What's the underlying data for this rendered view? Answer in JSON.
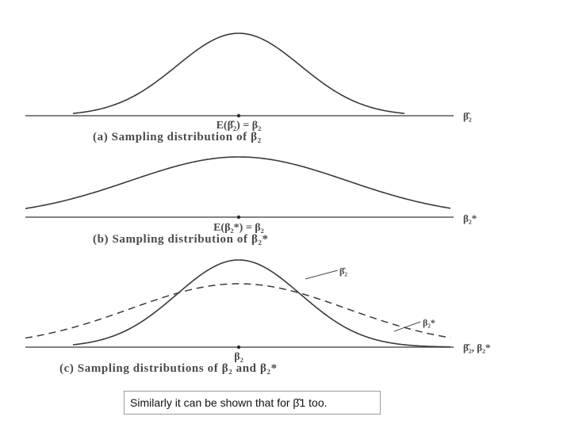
{
  "panels": [
    {
      "axis_label": "β̂₂",
      "mean_label": "E(β̂₂) = β₂",
      "caption": "(a) Sampling distribution of β₂",
      "curves": [
        {
          "label": "",
          "style": "solid",
          "relative_spread": 1.0
        }
      ]
    },
    {
      "axis_label": "β₂*",
      "mean_label": "E(β₂*) = β₂",
      "caption": "(b) Sampling distribution of β₂*",
      "curves": [
        {
          "label": "",
          "style": "solid",
          "relative_spread": 1.75
        }
      ]
    },
    {
      "axis_label": "β̂₂, β₂*",
      "mean_label": "β₂",
      "caption": "(c) Sampling distributions of β₂ and β₂*",
      "curves": [
        {
          "label": "β̂₂",
          "style": "solid",
          "relative_spread": 1.0
        },
        {
          "label": "β₂*",
          "style": "dashed",
          "relative_spread": 1.75
        }
      ]
    }
  ],
  "note": {
    "text": "Similarly it can be shown that for β̂1 too."
  }
}
